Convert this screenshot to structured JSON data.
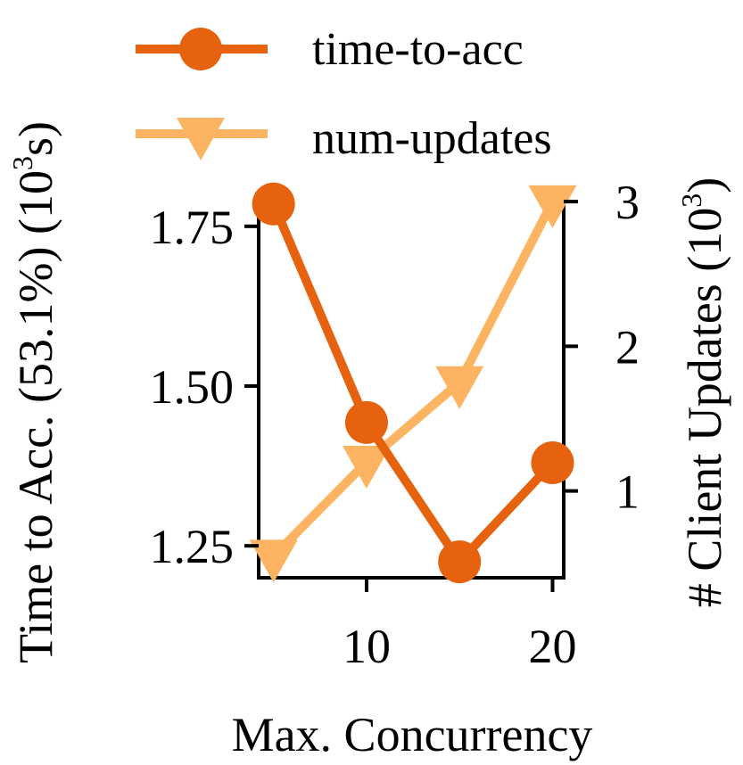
{
  "chart_data": {
    "type": "line",
    "x": [
      5,
      10,
      15,
      20
    ],
    "xlabel": "Max. Concurrency",
    "xlim": [
      4.2,
      20.6
    ],
    "xticks": [
      "10",
      "20"
    ],
    "xtick_values": [
      10,
      20
    ],
    "ylabel_left": {
      "main": "Time to Acc. (53.1%) (10",
      "sup": "3",
      "tail": "s)"
    },
    "ylim_left": [
      1.2,
      1.8
    ],
    "yticks_left": [
      "1.25",
      "1.50",
      "1.75"
    ],
    "ytick_values_left": [
      1.25,
      1.5,
      1.75
    ],
    "ylabel_right": {
      "main": "# Client Updates (10",
      "sup": "3",
      "tail": ")"
    },
    "ylim_right": [
      0.4,
      3.05
    ],
    "yticks_right": [
      "1",
      "2",
      "3"
    ],
    "ytick_values_right": [
      1,
      2,
      3
    ],
    "series": [
      {
        "name": "time-to-acc",
        "axis": "left",
        "marker": "circle",
        "color": "#e6620f",
        "values": [
          1.785,
          1.443,
          1.225,
          1.38
        ]
      },
      {
        "name": "num-updates",
        "axis": "right",
        "marker": "triangle-down",
        "color": "#fdb462",
        "values": [
          0.55,
          1.2,
          1.75,
          3.0
        ]
      }
    ],
    "legend_position": "top"
  }
}
